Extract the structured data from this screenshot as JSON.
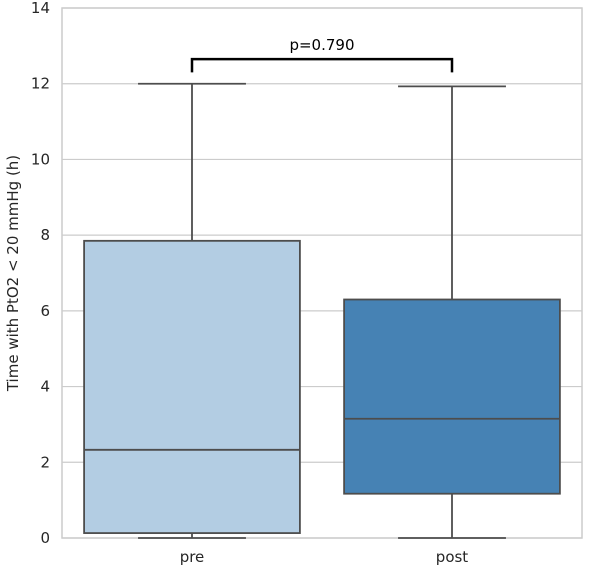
{
  "chart_data": {
    "type": "box",
    "xlabel": "",
    "ylabel": "Time with PtO2 < 20 mmHg (h)",
    "ylim": [
      0,
      14
    ],
    "yticks": [
      0,
      2,
      4,
      6,
      8,
      10,
      12,
      14
    ],
    "grid": true,
    "categories": [
      "pre",
      "post"
    ],
    "boxes": [
      {
        "category": "pre",
        "whisker_low": 0.0,
        "q1": 0.13,
        "median": 2.33,
        "q3": 7.85,
        "whisker_high": 12.0,
        "color": "#b3cde3"
      },
      {
        "category": "post",
        "whisker_low": 0.0,
        "q1": 1.17,
        "median": 3.15,
        "q3": 6.3,
        "whisker_high": 11.93,
        "color": "#4682b4"
      }
    ],
    "annotation": {
      "text": "p=0.790",
      "from": "pre",
      "to": "post",
      "y": 12.65,
      "drop": 0.35
    },
    "colors": {
      "grid": "#cccccc",
      "box_edge": "#4d4d4d",
      "background": "#ffffff"
    }
  }
}
